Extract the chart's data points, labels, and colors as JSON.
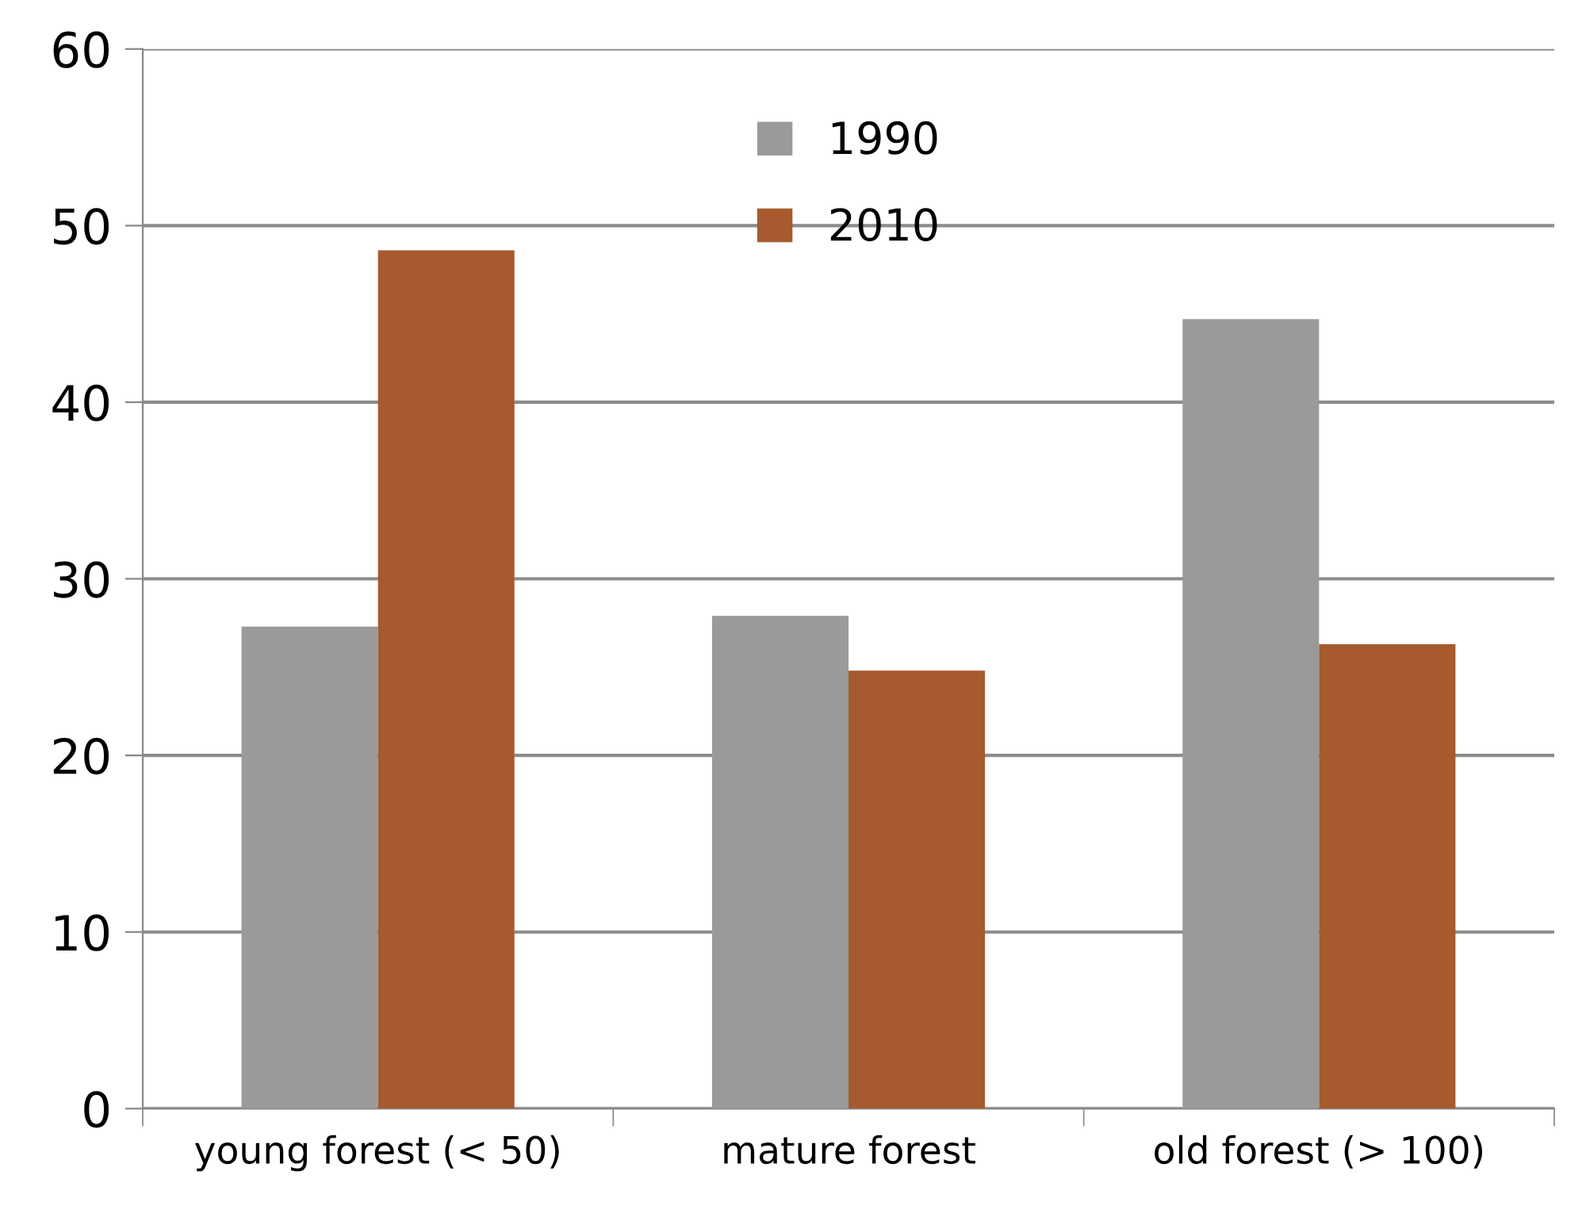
{
  "chart_data": {
    "type": "bar",
    "categories": [
      "young forest (< 50)",
      "mature forest",
      "old forest (> 100)"
    ],
    "series": [
      {
        "name": "1990",
        "color": "#9a9a9a",
        "values": [
          27.3,
          27.9,
          44.7
        ]
      },
      {
        "name": "2010",
        "color": "#a65a2e",
        "values": [
          48.6,
          24.8,
          26.3
        ]
      }
    ],
    "ylim": [
      0,
      60
    ],
    "yticks": [
      0,
      10,
      20,
      30,
      40,
      50,
      60
    ],
    "grid": "y",
    "legend": "top"
  }
}
